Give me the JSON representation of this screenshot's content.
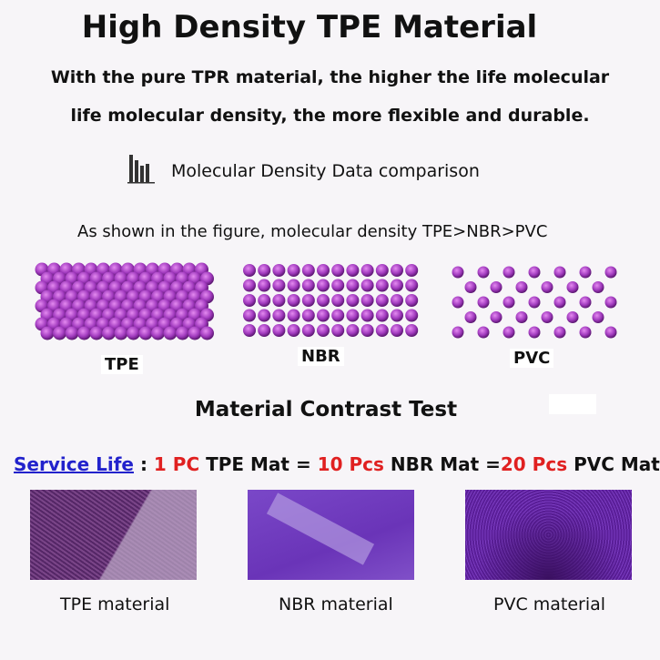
{
  "title": "High Density TPE Material",
  "intro": {
    "line1": "With the pure TPR material, the higher the life molecular",
    "line2": "life molecular density, the more flexible and durable."
  },
  "density_section": {
    "icon": "bar-chart-icon",
    "title": "Molecular Density Data comparison",
    "figure_note": "As shown in the figure, molecular density TPE>NBR>PVC",
    "panels": [
      {
        "label": "TPE"
      },
      {
        "label": "NBR"
      },
      {
        "label": "PVC"
      }
    ],
    "dot_color": "#a23bbf"
  },
  "contrast_section": {
    "title": "Material Contrast Test",
    "service_life": {
      "link": "Service Life",
      "sep": " : ",
      "n1": "1 PC",
      "t1": " TPE Mat = ",
      "n2": "10 Pcs",
      "t2": " NBR Mat =",
      "n3": "20 Pcs",
      "t3": " PVC Mat"
    },
    "highlight_color": "#e02020",
    "materials": [
      {
        "caption": "TPE material"
      },
      {
        "caption": "NBR material"
      },
      {
        "caption": "PVC material"
      }
    ]
  }
}
